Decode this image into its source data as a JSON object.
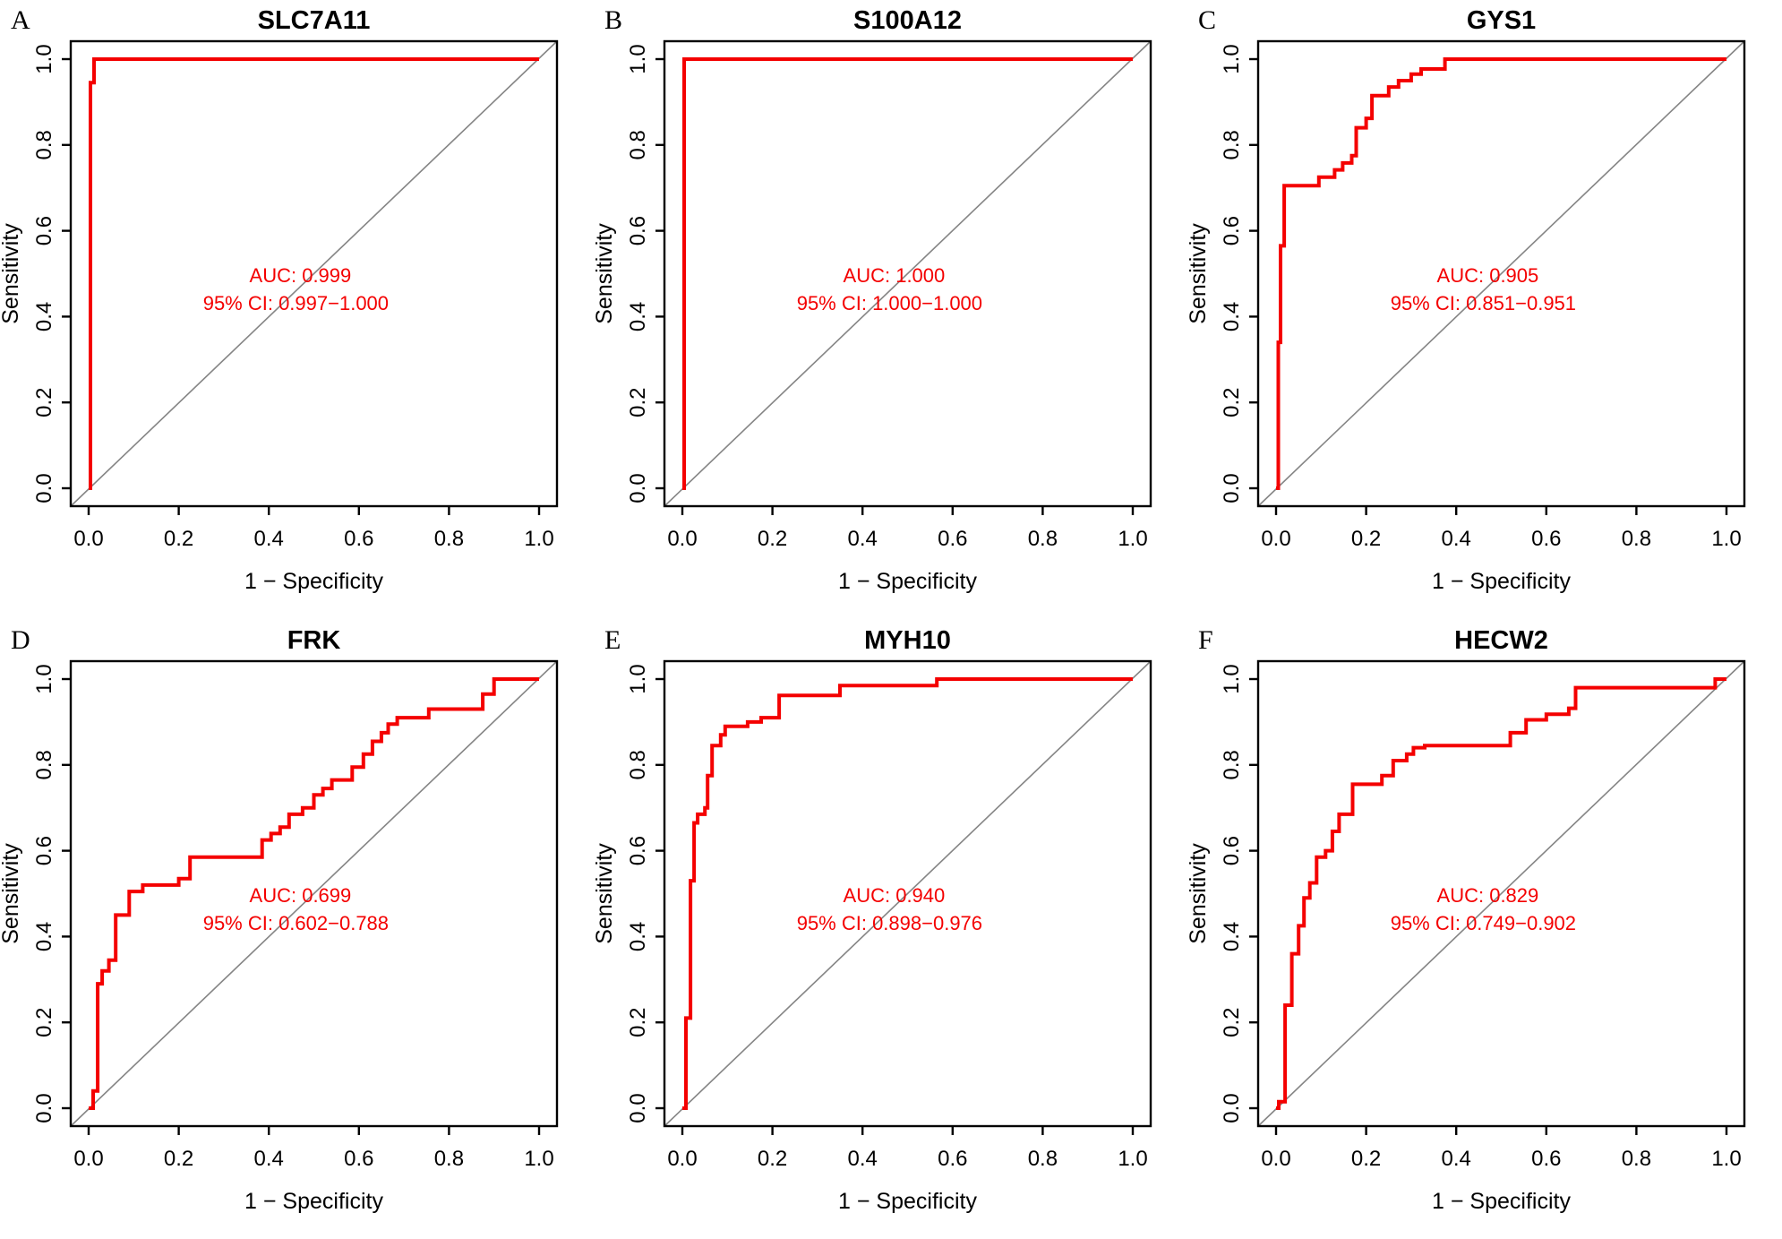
{
  "figure": {
    "background": "#ffffff",
    "axis": {
      "xlabel": "1 − Specificity",
      "ylabel": "Sensitivity",
      "ticks": [
        "0.0",
        "0.2",
        "0.4",
        "0.6",
        "0.8",
        "1.0"
      ],
      "tick_values": [
        0,
        0.2,
        0.4,
        0.6,
        0.8,
        1.0
      ],
      "xlim": [
        0,
        1
      ],
      "ylim": [
        0,
        1
      ],
      "grid": false
    },
    "colors": {
      "curve": "#f40000",
      "annotation": "#f40000",
      "diagonal": "#858585",
      "axis": "#000000",
      "title": "#000000"
    }
  },
  "chart_data": [
    {
      "type": "line",
      "panel_letter": "A",
      "title": "SLC7A11",
      "auc": 0.999,
      "auc_label": "AUC: 0.999",
      "ci_label": "95% CI: 0.997−1.000",
      "ci_low": 0.997,
      "ci_high": 1.0,
      "xlabel": "1 − Specificity",
      "ylabel": "Sensitivity",
      "legend_position": "none",
      "roc_points": [
        [
          0,
          0
        ],
        [
          0.004,
          0
        ],
        [
          0.004,
          0.945
        ],
        [
          0.012,
          0.945
        ],
        [
          0.012,
          1
        ],
        [
          1,
          1
        ]
      ]
    },
    {
      "type": "line",
      "panel_letter": "B",
      "title": "S100A12",
      "auc": 1.0,
      "auc_label": "AUC: 1.000",
      "ci_label": "95% CI: 1.000−1.000",
      "ci_low": 1.0,
      "ci_high": 1.0,
      "xlabel": "1 − Specificity",
      "ylabel": "Sensitivity",
      "legend_position": "none",
      "roc_points": [
        [
          0,
          0
        ],
        [
          0.004,
          0
        ],
        [
          0.004,
          1
        ],
        [
          1,
          1
        ]
      ]
    },
    {
      "type": "line",
      "panel_letter": "C",
      "title": "GYS1",
      "auc": 0.905,
      "auc_label": "AUC: 0.905",
      "ci_label": "95% CI: 0.851−0.951",
      "ci_low": 0.851,
      "ci_high": 0.951,
      "xlabel": "1 − Specificity",
      "ylabel": "Sensitivity",
      "legend_position": "none",
      "roc_points": [
        [
          0,
          0
        ],
        [
          0.005,
          0
        ],
        [
          0.005,
          0.34
        ],
        [
          0.01,
          0.34
        ],
        [
          0.01,
          0.565
        ],
        [
          0.018,
          0.565
        ],
        [
          0.018,
          0.705
        ],
        [
          0.095,
          0.705
        ],
        [
          0.095,
          0.725
        ],
        [
          0.13,
          0.725
        ],
        [
          0.13,
          0.742
        ],
        [
          0.148,
          0.742
        ],
        [
          0.148,
          0.758
        ],
        [
          0.168,
          0.758
        ],
        [
          0.168,
          0.775
        ],
        [
          0.178,
          0.775
        ],
        [
          0.178,
          0.84
        ],
        [
          0.2,
          0.84
        ],
        [
          0.2,
          0.862
        ],
        [
          0.213,
          0.862
        ],
        [
          0.213,
          0.915
        ],
        [
          0.25,
          0.915
        ],
        [
          0.25,
          0.935
        ],
        [
          0.272,
          0.935
        ],
        [
          0.272,
          0.95
        ],
        [
          0.3,
          0.95
        ],
        [
          0.3,
          0.965
        ],
        [
          0.322,
          0.965
        ],
        [
          0.322,
          0.977
        ],
        [
          0.375,
          0.977
        ],
        [
          0.375,
          1
        ],
        [
          1,
          1
        ]
      ]
    },
    {
      "type": "line",
      "panel_letter": "D",
      "title": "FRK",
      "auc": 0.699,
      "auc_label": "AUC: 0.699",
      "ci_label": "95% CI: 0.602−0.788",
      "ci_low": 0.602,
      "ci_high": 0.788,
      "xlabel": "1 − Specificity",
      "ylabel": "Sensitivity",
      "legend_position": "none",
      "roc_points": [
        [
          0,
          0
        ],
        [
          0.01,
          0
        ],
        [
          0.01,
          0.04
        ],
        [
          0.02,
          0.04
        ],
        [
          0.02,
          0.29
        ],
        [
          0.03,
          0.29
        ],
        [
          0.03,
          0.32
        ],
        [
          0.045,
          0.32
        ],
        [
          0.045,
          0.345
        ],
        [
          0.06,
          0.345
        ],
        [
          0.06,
          0.45
        ],
        [
          0.09,
          0.45
        ],
        [
          0.09,
          0.505
        ],
        [
          0.12,
          0.505
        ],
        [
          0.12,
          0.52
        ],
        [
          0.2,
          0.52
        ],
        [
          0.2,
          0.535
        ],
        [
          0.225,
          0.535
        ],
        [
          0.225,
          0.585
        ],
        [
          0.385,
          0.585
        ],
        [
          0.385,
          0.625
        ],
        [
          0.405,
          0.625
        ],
        [
          0.405,
          0.64
        ],
        [
          0.425,
          0.64
        ],
        [
          0.425,
          0.655
        ],
        [
          0.445,
          0.655
        ],
        [
          0.445,
          0.685
        ],
        [
          0.475,
          0.685
        ],
        [
          0.475,
          0.7
        ],
        [
          0.5,
          0.7
        ],
        [
          0.5,
          0.73
        ],
        [
          0.52,
          0.73
        ],
        [
          0.52,
          0.745
        ],
        [
          0.54,
          0.745
        ],
        [
          0.54,
          0.765
        ],
        [
          0.585,
          0.765
        ],
        [
          0.585,
          0.795
        ],
        [
          0.61,
          0.795
        ],
        [
          0.61,
          0.825
        ],
        [
          0.63,
          0.825
        ],
        [
          0.63,
          0.855
        ],
        [
          0.65,
          0.855
        ],
        [
          0.65,
          0.875
        ],
        [
          0.665,
          0.875
        ],
        [
          0.665,
          0.895
        ],
        [
          0.685,
          0.895
        ],
        [
          0.685,
          0.91
        ],
        [
          0.755,
          0.91
        ],
        [
          0.755,
          0.93
        ],
        [
          0.875,
          0.93
        ],
        [
          0.875,
          0.965
        ],
        [
          0.9,
          0.965
        ],
        [
          0.9,
          1
        ],
        [
          1,
          1
        ]
      ]
    },
    {
      "type": "line",
      "panel_letter": "E",
      "title": "MYH10",
      "auc": 0.94,
      "auc_label": "AUC: 0.940",
      "ci_label": "95% CI: 0.898−0.976",
      "ci_low": 0.898,
      "ci_high": 0.976,
      "xlabel": "1 − Specificity",
      "ylabel": "Sensitivity",
      "legend_position": "none",
      "roc_points": [
        [
          0,
          0
        ],
        [
          0.008,
          0
        ],
        [
          0.008,
          0.21
        ],
        [
          0.018,
          0.21
        ],
        [
          0.018,
          0.53
        ],
        [
          0.026,
          0.53
        ],
        [
          0.026,
          0.665
        ],
        [
          0.034,
          0.665
        ],
        [
          0.034,
          0.685
        ],
        [
          0.05,
          0.685
        ],
        [
          0.05,
          0.7
        ],
        [
          0.056,
          0.7
        ],
        [
          0.056,
          0.775
        ],
        [
          0.066,
          0.775
        ],
        [
          0.066,
          0.845
        ],
        [
          0.085,
          0.845
        ],
        [
          0.085,
          0.87
        ],
        [
          0.095,
          0.87
        ],
        [
          0.095,
          0.89
        ],
        [
          0.145,
          0.89
        ],
        [
          0.145,
          0.9
        ],
        [
          0.175,
          0.9
        ],
        [
          0.175,
          0.91
        ],
        [
          0.215,
          0.91
        ],
        [
          0.215,
          0.962
        ],
        [
          0.35,
          0.962
        ],
        [
          0.35,
          0.985
        ],
        [
          0.565,
          0.985
        ],
        [
          0.565,
          1
        ],
        [
          1,
          1
        ]
      ]
    },
    {
      "type": "line",
      "panel_letter": "F",
      "title": "HECW2",
      "auc": 0.829,
      "auc_label": "AUC: 0.829",
      "ci_label": "95% CI: 0.749−0.902",
      "ci_low": 0.749,
      "ci_high": 0.902,
      "xlabel": "1 − Specificity",
      "ylabel": "Sensitivity",
      "legend_position": "none",
      "roc_points": [
        [
          0,
          0
        ],
        [
          0.006,
          0
        ],
        [
          0.006,
          0.015
        ],
        [
          0.02,
          0.015
        ],
        [
          0.02,
          0.24
        ],
        [
          0.035,
          0.24
        ],
        [
          0.035,
          0.36
        ],
        [
          0.05,
          0.36
        ],
        [
          0.05,
          0.425
        ],
        [
          0.062,
          0.425
        ],
        [
          0.062,
          0.49
        ],
        [
          0.075,
          0.49
        ],
        [
          0.075,
          0.525
        ],
        [
          0.09,
          0.525
        ],
        [
          0.09,
          0.585
        ],
        [
          0.11,
          0.585
        ],
        [
          0.11,
          0.6
        ],
        [
          0.125,
          0.6
        ],
        [
          0.125,
          0.645
        ],
        [
          0.14,
          0.645
        ],
        [
          0.14,
          0.685
        ],
        [
          0.17,
          0.685
        ],
        [
          0.17,
          0.755
        ],
        [
          0.235,
          0.755
        ],
        [
          0.235,
          0.775
        ],
        [
          0.26,
          0.775
        ],
        [
          0.26,
          0.81
        ],
        [
          0.29,
          0.81
        ],
        [
          0.29,
          0.825
        ],
        [
          0.305,
          0.825
        ],
        [
          0.305,
          0.84
        ],
        [
          0.33,
          0.84
        ],
        [
          0.33,
          0.845
        ],
        [
          0.52,
          0.845
        ],
        [
          0.52,
          0.875
        ],
        [
          0.555,
          0.875
        ],
        [
          0.555,
          0.905
        ],
        [
          0.6,
          0.905
        ],
        [
          0.6,
          0.918
        ],
        [
          0.65,
          0.918
        ],
        [
          0.65,
          0.932
        ],
        [
          0.665,
          0.932
        ],
        [
          0.665,
          0.98
        ],
        [
          0.975,
          0.98
        ],
        [
          0.975,
          1
        ],
        [
          1,
          1
        ]
      ]
    }
  ]
}
